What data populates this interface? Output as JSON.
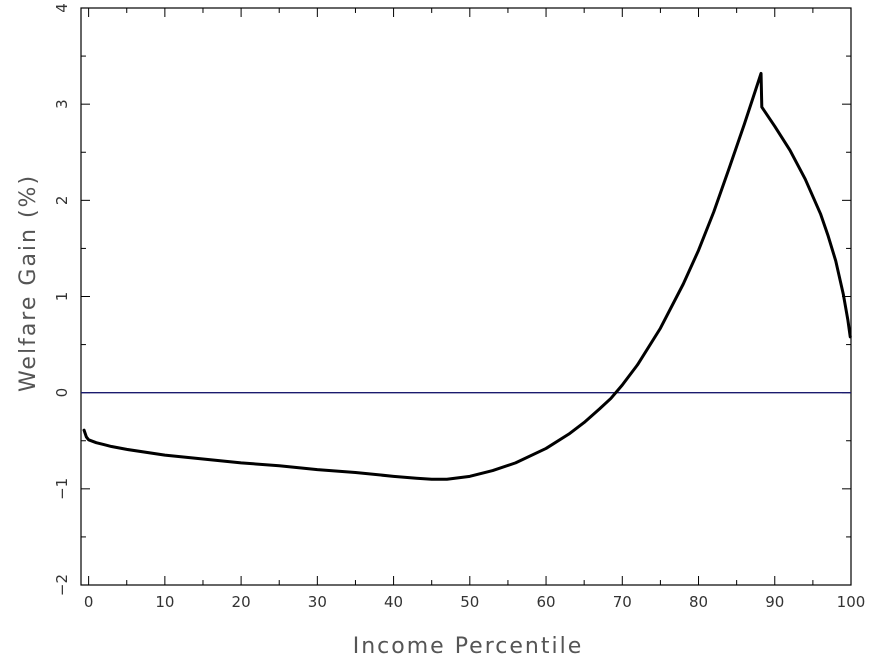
{
  "chart_data": {
    "type": "line",
    "title": "",
    "xlabel": "Income Percentile",
    "ylabel": "Welfare Gain (%)",
    "xlim": [
      -1,
      100
    ],
    "ylim": [
      -2,
      4
    ],
    "x_ticks": [
      0,
      10,
      20,
      30,
      40,
      50,
      60,
      70,
      80,
      90,
      100
    ],
    "y_ticks": [
      -2,
      -1,
      0,
      1,
      2,
      3,
      4
    ],
    "x_tick_labels": [
      "0",
      "10",
      "20",
      "30",
      "40",
      "50",
      "60",
      "70",
      "80",
      "90",
      "100"
    ],
    "y_tick_labels": [
      "−2",
      "−1",
      "0",
      "1",
      "2",
      "3",
      "4"
    ],
    "grid": false,
    "reference_line": {
      "y": 0,
      "color": "#1a1a6e"
    },
    "series": [
      {
        "color": "#000000",
        "points": [
          [
            -0.6,
            -0.39
          ],
          [
            -0.3,
            -0.46
          ],
          [
            0,
            -0.49
          ],
          [
            1,
            -0.52
          ],
          [
            2,
            -0.54
          ],
          [
            3,
            -0.56
          ],
          [
            5,
            -0.59
          ],
          [
            10,
            -0.65
          ],
          [
            15,
            -0.69
          ],
          [
            20,
            -0.73
          ],
          [
            25,
            -0.76
          ],
          [
            30,
            -0.8
          ],
          [
            35,
            -0.83
          ],
          [
            40,
            -0.87
          ],
          [
            43,
            -0.89
          ],
          [
            45,
            -0.9
          ],
          [
            47,
            -0.9
          ],
          [
            50,
            -0.87
          ],
          [
            53,
            -0.81
          ],
          [
            56,
            -0.73
          ],
          [
            60,
            -0.58
          ],
          [
            63,
            -0.43
          ],
          [
            65,
            -0.31
          ],
          [
            67,
            -0.17
          ],
          [
            68.5,
            -0.06
          ],
          [
            70,
            0.08
          ],
          [
            72,
            0.29
          ],
          [
            75,
            0.67
          ],
          [
            78,
            1.13
          ],
          [
            80,
            1.48
          ],
          [
            82,
            1.88
          ],
          [
            84,
            2.33
          ],
          [
            86,
            2.79
          ],
          [
            87,
            3.03
          ],
          [
            88.2,
            3.32
          ],
          [
            88.3,
            2.97
          ],
          [
            90,
            2.77
          ],
          [
            92,
            2.52
          ],
          [
            94,
            2.22
          ],
          [
            96,
            1.86
          ],
          [
            97,
            1.63
          ],
          [
            98,
            1.37
          ],
          [
            99,
            1.02
          ],
          [
            99.6,
            0.75
          ],
          [
            99.9,
            0.58
          ]
        ]
      }
    ]
  },
  "colors": {
    "line": "#000000",
    "zero_line": "#1a1a6e",
    "frame": "#000000",
    "text": "#333333"
  }
}
